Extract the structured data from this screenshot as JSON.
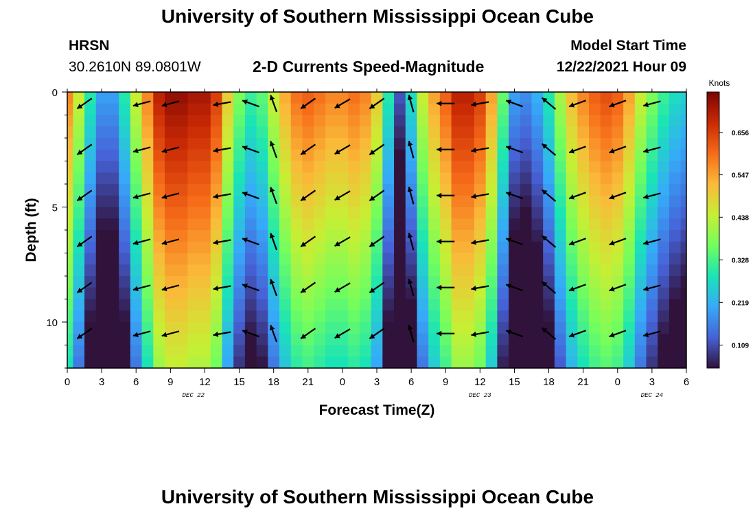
{
  "header": {
    "title": "University of Southern Mississippi Ocean Cube",
    "station": "HRSN",
    "coordinates": "30.2610N  89.0801W",
    "model_start_label": "Model Start Time",
    "model_start_value": "12/22/2021 Hour 09"
  },
  "footer": {
    "title": "University of Southern Mississippi Ocean Cube"
  },
  "colors": {
    "arrow": "#000000",
    "colormap": [
      "#30123b",
      "#4662d7",
      "#36aaf9",
      "#1ae4b6",
      "#72fe5e",
      "#c7ef34",
      "#faba39",
      "#f66b19",
      "#ca2a04",
      "#7a0403"
    ]
  },
  "chart_data": {
    "type": "heatmap",
    "title": "2-D Currents Speed-Magnitude",
    "xlabel": "Forecast Time(Z)",
    "ylabel": "Depth (ft)",
    "x_tick_labels": [
      "0",
      "3",
      "6",
      "9",
      "12",
      "15",
      "18",
      "21",
      "0",
      "3",
      "6",
      "9",
      "12",
      "15",
      "18",
      "21",
      "0",
      "3",
      "6"
    ],
    "x_range_hours": [
      0,
      54
    ],
    "x_tick_step_hours": 3,
    "date_labels": [
      {
        "text": "DEC 22",
        "hour": 11
      },
      {
        "text": "DEC 23",
        "hour": 36
      },
      {
        "text": "DEC 24",
        "hour": 51
      }
    ],
    "y_tick_labels": [
      "0",
      "5",
      "10"
    ],
    "y_ticks_ft": [
      0,
      5,
      10
    ],
    "y_range_ft": [
      0,
      12
    ],
    "y_inverted": true,
    "colorbar": {
      "unit": "Knots",
      "range": [
        0.05,
        0.76
      ],
      "ticks": [
        "0.656",
        "0.547",
        "0.438",
        "0.328",
        "0.219",
        "0.109"
      ],
      "tick_values": [
        0.656,
        0.547,
        0.438,
        0.328,
        0.219,
        0.109
      ]
    },
    "time_hours": [
      0,
      1,
      2,
      3,
      4,
      5,
      6,
      7,
      8,
      9,
      10,
      11,
      12,
      13,
      14,
      15,
      16,
      17,
      18,
      19,
      20,
      21,
      22,
      23,
      24,
      25,
      26,
      27,
      28,
      29,
      30,
      31,
      32,
      33,
      34,
      35,
      36,
      37,
      38,
      39,
      40,
      41,
      42,
      43,
      44,
      45,
      46,
      47,
      48,
      49,
      50,
      51,
      52,
      53,
      54
    ],
    "surface_speed_knots": [
      0.58,
      0.45,
      0.3,
      0.2,
      0.2,
      0.3,
      0.45,
      0.58,
      0.7,
      0.74,
      0.74,
      0.72,
      0.72,
      0.66,
      0.5,
      0.38,
      0.32,
      0.35,
      0.45,
      0.54,
      0.6,
      0.62,
      0.6,
      0.58,
      0.58,
      0.6,
      0.58,
      0.5,
      0.3,
      0.12,
      0.28,
      0.45,
      0.55,
      0.62,
      0.7,
      0.7,
      0.66,
      0.55,
      0.36,
      0.2,
      0.18,
      0.22,
      0.3,
      0.42,
      0.52,
      0.58,
      0.62,
      0.64,
      0.62,
      0.55,
      0.45,
      0.38,
      0.32,
      0.28,
      0.26
    ],
    "depth_decay_per_ft": 0.025,
    "vector_depths_ft": [
      0.5,
      2.5,
      4.5,
      6.5,
      8.5,
      10.5
    ],
    "vector_times_hours": [
      1.5,
      6.5,
      9,
      13.5,
      16,
      18,
      21,
      24,
      27,
      30,
      33,
      36,
      39,
      42,
      44.5,
      48,
      51
    ],
    "vector_angles_deg": [
      35,
      15,
      15,
      10,
      -20,
      -70,
      35,
      30,
      35,
      -75,
      0,
      10,
      -20,
      -40,
      20,
      20,
      15
    ]
  }
}
